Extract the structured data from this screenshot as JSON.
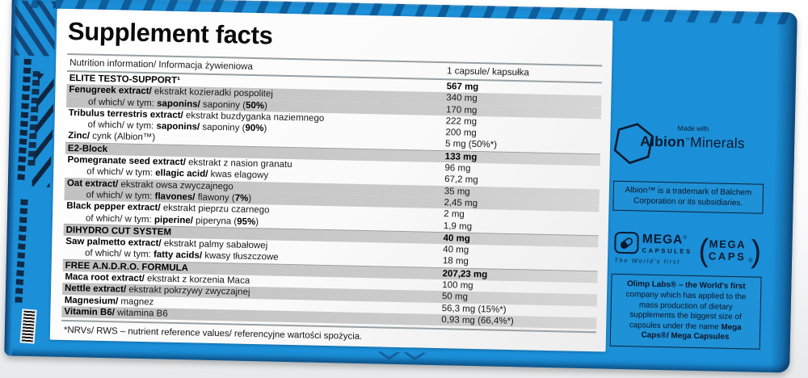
{
  "colors": {
    "box_blue": "#1b8fd7",
    "navy_ink": "#10253f",
    "shaded_row_gray": "#c6c6c6"
  },
  "label": {
    "title": "Supplement facts",
    "header": {
      "left": "Nutrition information/ Informacja żywieniowa",
      "right": "1 capsule/ kapsułka"
    },
    "rows": [
      {
        "parts": [
          {
            "t": "ELITE TESTO-SUPPORT¹",
            "b": true
          }
        ],
        "value": "567 mg",
        "vb": true,
        "shaded": false,
        "indent": false,
        "section": false
      },
      {
        "parts": [
          {
            "t": "Fenugreek extract/",
            "b": true
          },
          {
            "t": " ekstrakt kozieradki pospolitej",
            "b": false
          }
        ],
        "value": "340 mg",
        "vb": false,
        "shaded": true,
        "indent": false,
        "section": false
      },
      {
        "parts": [
          {
            "t": "of which/ w tym: ",
            "b": false
          },
          {
            "t": "saponins/",
            "b": true
          },
          {
            "t": " saponiny (",
            "b": false
          },
          {
            "t": "50%",
            "b": true
          },
          {
            "t": ")",
            "b": false
          }
        ],
        "value": "170 mg",
        "vb": false,
        "shaded": true,
        "indent": true,
        "section": false
      },
      {
        "parts": [
          {
            "t": "Tribulus terrestris extract/",
            "b": true
          },
          {
            "t": " ekstrakt buzdyganka naziemnego",
            "b": false
          }
        ],
        "value": "222 mg",
        "vb": false,
        "shaded": false,
        "indent": false,
        "section": false
      },
      {
        "parts": [
          {
            "t": "of which/ w tym: ",
            "b": false
          },
          {
            "t": "saponins/",
            "b": true
          },
          {
            "t": " saponiny (",
            "b": false
          },
          {
            "t": "90%",
            "b": true
          },
          {
            "t": ")",
            "b": false
          }
        ],
        "value": "200 mg",
        "vb": false,
        "shaded": false,
        "indent": true,
        "section": false
      },
      {
        "parts": [
          {
            "t": "Zinc/",
            "b": true
          },
          {
            "t": " cynk (Albion™)",
            "b": false
          }
        ],
        "value": "5 mg (50%*)",
        "vb": false,
        "shaded": false,
        "indent": false,
        "section": false
      },
      {
        "parts": [
          {
            "t": "E2-Block",
            "b": true
          }
        ],
        "value": "133 mg",
        "vb": true,
        "shaded": true,
        "indent": false,
        "section": true
      },
      {
        "parts": [
          {
            "t": "Pomegranate seed extract/",
            "b": true
          },
          {
            "t": " ekstrakt z nasion granatu",
            "b": false
          }
        ],
        "value": "96 mg",
        "vb": false,
        "shaded": false,
        "indent": false,
        "section": false
      },
      {
        "parts": [
          {
            "t": "of which/ w tym: ",
            "b": false
          },
          {
            "t": "ellagic acid/",
            "b": true
          },
          {
            "t": " kwas elagowy",
            "b": false
          }
        ],
        "value": "67,2 mg",
        "vb": false,
        "shaded": false,
        "indent": true,
        "section": false
      },
      {
        "parts": [
          {
            "t": "Oat extract/",
            "b": true
          },
          {
            "t": " ekstrakt owsa zwyczajnego",
            "b": false
          }
        ],
        "value": "35 mg",
        "vb": false,
        "shaded": true,
        "indent": false,
        "section": false
      },
      {
        "parts": [
          {
            "t": "of which/ w tym: ",
            "b": false
          },
          {
            "t": "flavones/",
            "b": true
          },
          {
            "t": " flawony (",
            "b": false
          },
          {
            "t": "7%",
            "b": true
          },
          {
            "t": ")",
            "b": false
          }
        ],
        "value": "2,45 mg",
        "vb": false,
        "shaded": true,
        "indent": true,
        "section": false
      },
      {
        "parts": [
          {
            "t": "Black pepper extract/",
            "b": true
          },
          {
            "t": " ekstrakt pieprzu czarnego",
            "b": false
          }
        ],
        "value": "2 mg",
        "vb": false,
        "shaded": false,
        "indent": false,
        "section": false
      },
      {
        "parts": [
          {
            "t": "of which/ w tym: ",
            "b": false
          },
          {
            "t": "piperine/",
            "b": true
          },
          {
            "t": " piperyna (",
            "b": false
          },
          {
            "t": "95%",
            "b": true
          },
          {
            "t": ")",
            "b": false
          }
        ],
        "value": "1,9 mg",
        "vb": false,
        "shaded": false,
        "indent": true,
        "section": false
      },
      {
        "parts": [
          {
            "t": "DIHYDRO CUT SYSTEM",
            "b": true
          }
        ],
        "value": "40 mg",
        "vb": true,
        "shaded": true,
        "indent": false,
        "section": true
      },
      {
        "parts": [
          {
            "t": "Saw palmetto extract/",
            "b": true
          },
          {
            "t": " ekstrakt palmy sabałowej",
            "b": false
          }
        ],
        "value": "40 mg",
        "vb": false,
        "shaded": false,
        "indent": false,
        "section": false
      },
      {
        "parts": [
          {
            "t": "of which/ w tym: ",
            "b": false
          },
          {
            "t": "fatty acids/",
            "b": true
          },
          {
            "t": " kwasy tłuszczowe",
            "b": false
          }
        ],
        "value": "18 mg",
        "vb": false,
        "shaded": false,
        "indent": true,
        "section": false
      },
      {
        "parts": [
          {
            "t": "FREE A.N.D.R.O. FORMULA",
            "b": true
          }
        ],
        "value": "207,23 mg",
        "vb": true,
        "shaded": true,
        "indent": false,
        "section": true
      },
      {
        "parts": [
          {
            "t": "Maca root extract/",
            "b": true
          },
          {
            "t": " ekstrakt z korzenia Maca",
            "b": false
          }
        ],
        "value": "100 mg",
        "vb": false,
        "shaded": false,
        "indent": false,
        "section": false
      },
      {
        "parts": [
          {
            "t": "Nettle extract/",
            "b": true
          },
          {
            "t": " ekstrakt pokrzywy zwyczajnej",
            "b": false
          }
        ],
        "value": "50 mg",
        "vb": false,
        "shaded": true,
        "indent": false,
        "section": false
      },
      {
        "parts": [
          {
            "t": "Magnesium/",
            "b": true
          },
          {
            "t": " magnez",
            "b": false
          }
        ],
        "value": "56,3 mg (15%*)",
        "vb": false,
        "shaded": false,
        "indent": false,
        "section": false
      },
      {
        "parts": [
          {
            "t": "Vitamin B6/",
            "b": true
          },
          {
            "t": " witamina B6",
            "b": false
          }
        ],
        "value": "0,93 mg (66,4%*)",
        "vb": false,
        "shaded": true,
        "indent": false,
        "section": false
      }
    ],
    "footnote": "*NRVs/ RWS – nutrient reference values/ referencyjne wartości spożycia."
  },
  "side_panel": {
    "albion": {
      "made_with": "Made with",
      "brand_bold": "Albion",
      "brand_tm": "™",
      "brand_rest": "Minerals"
    },
    "albion_note": "Albion™ is a trademark of Balchem Corporation or its subsidiaries.",
    "mega_capsules": {
      "mega": "MEGA",
      "reg": "®",
      "capsules": "CAPSULES",
      "tagline": "The World's first"
    },
    "mega_caps": {
      "mega": "MEGA",
      "caps": "CAPS",
      "reg": "®",
      "paren_open": "(",
      "paren_close": ")"
    },
    "olimp_note": {
      "bold_start": "Olimp Labs® – the World's first",
      "middle": " company which has applied to the mass production of dietary supplements the biggest size of capsules under the name ",
      "bold_end": "Mega Caps®/ Mega Capsules"
    }
  }
}
